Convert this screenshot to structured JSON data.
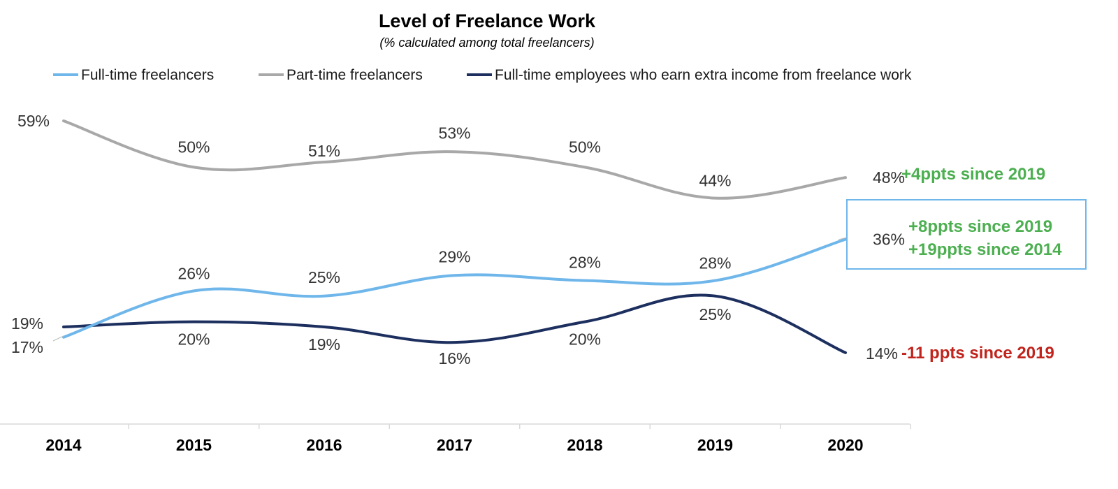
{
  "chart_data": {
    "type": "line",
    "title": "Level of Freelance Work",
    "subtitle": "(% calculated among total freelancers)",
    "xlabel": "",
    "ylabel": "",
    "categories": [
      "2014",
      "2015",
      "2016",
      "2017",
      "2018",
      "2019",
      "2020"
    ],
    "ylim": [
      0,
      70
    ],
    "grid": false,
    "legend_position": "top",
    "series": [
      {
        "name": "Full-time freelancers",
        "color": "#6fb6ea",
        "values": [
          17,
          26,
          25,
          29,
          28,
          28,
          36
        ],
        "labels": [
          "17%",
          "26%",
          "25%",
          "29%",
          "28%",
          "28%",
          "36%"
        ]
      },
      {
        "name": "Part-time freelancers",
        "color": "#a8a8a8",
        "values": [
          59,
          50,
          51,
          53,
          50,
          44,
          48
        ],
        "labels": [
          "59%",
          "50%",
          "51%",
          "53%",
          "50%",
          "44%",
          "48%"
        ]
      },
      {
        "name": "Full-time employees who earn extra income from freelance work",
        "color": "#1c2f5e",
        "values": [
          19,
          20,
          19,
          16,
          20,
          25,
          14
        ],
        "labels": [
          "19%",
          "20%",
          "19%",
          "16%",
          "20%",
          "25%",
          "14%"
        ]
      }
    ],
    "annotations": [
      {
        "series": "Part-time freelancers",
        "lines": [
          "+4ppts since 2019"
        ],
        "color": "#4caf50"
      },
      {
        "series": "Full-time freelancers",
        "lines": [
          "+8ppts since 2019",
          "+19ppts since 2014"
        ],
        "color": "#4caf50",
        "boxed": true,
        "box_color": "#6fb6ea"
      },
      {
        "series": "Full-time employees who earn extra income from freelance work",
        "lines": [
          "-11 ppts since 2019"
        ],
        "color": "#c0241c"
      }
    ]
  }
}
